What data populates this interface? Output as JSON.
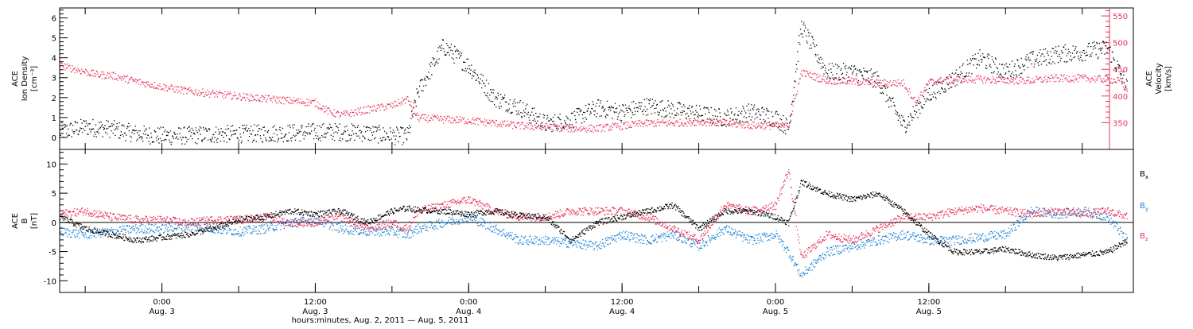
{
  "colors": {
    "density": "#000000",
    "velocity": "#e8325a",
    "bx": "#000000",
    "by": "#1f84d6",
    "bz": "#e8325a",
    "axes": "#000000"
  },
  "chart_data": [
    {
      "type": "scatter",
      "panel": "top",
      "ylabel_left": [
        "ACE",
        "Ion Density",
        "[cm⁻³]"
      ],
      "ylabel_right": [
        "ACE",
        "Velocity",
        "[km/s]"
      ],
      "ylim_left": [
        -0.6,
        6.5
      ],
      "ylim_right": [
        300,
        565
      ],
      "yticks_left": [
        "0",
        "1",
        "2",
        "3",
        "4",
        "5",
        "6"
      ],
      "yticks_right": [
        "350",
        "400",
        "450",
        "500",
        "550"
      ],
      "xlim_hours": [
        -8,
        76
      ],
      "series": [
        {
          "key": "density",
          "axis": "left",
          "x": [
            -8,
            -6,
            -4,
            -2,
            0,
            2,
            4,
            6,
            8,
            10,
            12,
            14,
            16,
            18,
            19.2,
            20,
            22,
            24,
            26,
            28,
            30,
            32,
            34,
            36,
            38,
            40,
            42,
            44,
            46,
            48,
            49,
            50,
            52,
            54,
            56,
            58,
            60,
            62,
            64,
            66,
            68,
            70,
            72,
            74,
            75.5
          ],
          "y": [
            0.3,
            0.55,
            0.45,
            0.2,
            0.1,
            0.12,
            0.18,
            0.2,
            0.22,
            0.25,
            0.3,
            0.3,
            0.25,
            0.1,
            0.1,
            2.3,
            4.6,
            3.6,
            2.0,
            1.5,
            0.7,
            0.9,
            1.5,
            1.3,
            1.6,
            1.4,
            1.2,
            1.0,
            1.3,
            1.0,
            0.5,
            5.6,
            3.3,
            3.3,
            2.9,
            0.6,
            2.2,
            3.0,
            4.0,
            3.3,
            3.9,
            4.2,
            4.3,
            4.5,
            2.5
          ]
        },
        {
          "key": "velocity",
          "axis": "right",
          "x": [
            -8,
            -7,
            -6,
            -5,
            -4,
            -2,
            0,
            2,
            4,
            6,
            8,
            10,
            12,
            13,
            14,
            16,
            18,
            19.2,
            20,
            22,
            24,
            26,
            28,
            30,
            32,
            34,
            36,
            38,
            40,
            42,
            44,
            46,
            48,
            49,
            50,
            52,
            54,
            56,
            58,
            59,
            60,
            62,
            64,
            66,
            68,
            70,
            72,
            74,
            75,
            75.5
          ],
          "y": [
            458,
            452,
            446,
            440,
            440,
            428,
            418,
            410,
            405,
            400,
            396,
            392,
            388,
            372,
            365,
            375,
            383,
            395,
            360,
            357,
            355,
            350,
            345,
            343,
            340,
            340,
            345,
            350,
            350,
            353,
            350,
            346,
            345,
            345,
            445,
            430,
            428,
            425,
            425,
            388,
            427,
            432,
            432,
            430,
            430,
            434,
            434,
            432,
            428,
            410
          ]
        }
      ]
    },
    {
      "type": "scatter",
      "panel": "bottom",
      "ylabel": [
        "ACE",
        "B",
        "[nT]"
      ],
      "ylim": [
        -12,
        12.5
      ],
      "yticks": [
        "-10",
        "-5",
        "0",
        "5",
        "10"
      ],
      "xlim_hours": [
        -8,
        76
      ],
      "legend": [
        {
          "key": "bx",
          "base": "B",
          "sub": "x"
        },
        {
          "key": "by",
          "base": "B",
          "sub": "y"
        },
        {
          "key": "bz",
          "base": "B",
          "sub": "z"
        }
      ],
      "series": [
        {
          "key": "bx",
          "x": [
            -8,
            -6,
            -4,
            -2,
            0,
            2,
            4,
            6,
            8,
            10,
            12,
            14,
            16,
            18,
            19.2,
            20,
            22,
            24,
            26,
            28,
            30,
            32,
            34,
            36,
            38,
            40,
            42,
            44,
            46,
            48,
            49,
            50,
            52,
            54,
            56,
            58,
            60,
            62,
            64,
            66,
            68,
            70,
            72,
            74,
            75.5
          ],
          "y": [
            1,
            -1,
            -2,
            -3,
            -2.5,
            -2,
            -1,
            0.5,
            1,
            2,
            1.5,
            2,
            0,
            2,
            2.5,
            2.2,
            2,
            1.5,
            2,
            1.2,
            1,
            -3,
            0,
            1,
            2,
            3,
            -1,
            2,
            2,
            1,
            0,
            7,
            5,
            4,
            5,
            2,
            -2,
            -5,
            -5,
            -4.5,
            -5.5,
            -6,
            -5.5,
            -5,
            -3
          ]
        },
        {
          "key": "by",
          "x": [
            -8,
            -6,
            -4,
            -2,
            0,
            2,
            4,
            6,
            8,
            10,
            12,
            14,
            16,
            18,
            19.2,
            20,
            22,
            24,
            26,
            28,
            30,
            32,
            34,
            36,
            38,
            40,
            42,
            44,
            46,
            48,
            49,
            50,
            52,
            54,
            56,
            58,
            60,
            62,
            64,
            66,
            68,
            70,
            72,
            74,
            75.5
          ],
          "y": [
            -1.5,
            -2,
            -1.5,
            -1,
            -1,
            -0.5,
            -1,
            -1.5,
            -1,
            0,
            0.5,
            -1,
            -1.5,
            -1.5,
            -2,
            -1,
            0,
            1,
            -1,
            -3,
            -3,
            -3.5,
            -4,
            -2,
            -3,
            -2,
            -4,
            -1,
            -3,
            -2,
            -5,
            -9,
            -5,
            -4,
            -3,
            -2,
            -3,
            -3,
            -2.5,
            -2,
            2,
            1.5,
            2,
            1,
            -3
          ]
        },
        {
          "key": "bz",
          "x": [
            -8,
            -6,
            -4,
            -2,
            0,
            2,
            4,
            6,
            8,
            10,
            12,
            14,
            16,
            18,
            19.2,
            20,
            22,
            24,
            26,
            28,
            30,
            32,
            34,
            36,
            38,
            40,
            42,
            44,
            46,
            48,
            49,
            50,
            52,
            54,
            56,
            58,
            60,
            62,
            64,
            66,
            68,
            70,
            72,
            74,
            75.5
          ],
          "y": [
            1.5,
            2,
            1,
            0.5,
            0.5,
            0,
            0.5,
            0.5,
            1,
            0,
            0,
            1,
            -1,
            0,
            -1,
            2,
            3,
            4,
            2,
            1,
            1,
            2,
            2,
            2,
            1,
            -1,
            -3,
            3,
            2,
            3,
            9,
            -6,
            -2,
            -3,
            -1,
            1,
            1,
            2,
            2.5,
            2,
            1.5,
            2,
            1.5,
            2,
            1
          ]
        }
      ]
    }
  ],
  "x_axis": {
    "ticks": [
      {
        "hours": 0,
        "time": "0:00",
        "date": "Aug. 3"
      },
      {
        "hours": 12,
        "time": "12:00",
        "date": "Aug. 3"
      },
      {
        "hours": 24,
        "time": "0:00",
        "date": "Aug. 4"
      },
      {
        "hours": 36,
        "time": "12:00",
        "date": "Aug. 4"
      },
      {
        "hours": 48,
        "time": "0:00",
        "date": "Aug. 5"
      },
      {
        "hours": 60,
        "time": "12:00",
        "date": "Aug. 5"
      }
    ],
    "label": "hours:minutes, Aug.  2, 2011 — Aug.  5, 2011"
  }
}
